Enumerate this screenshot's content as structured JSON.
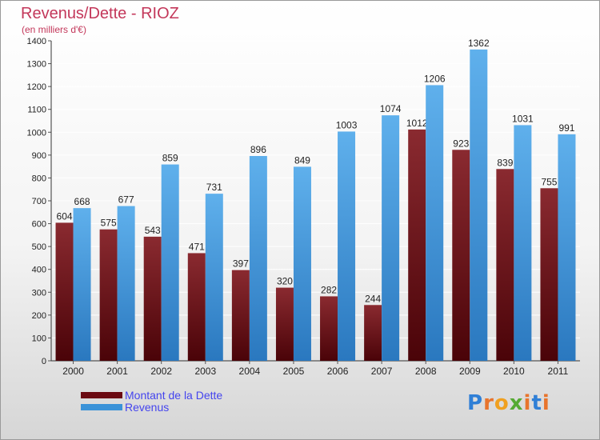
{
  "header": {
    "title": "Revenus/Dette - RIOZ",
    "subtitle": "(en milliers d'€)"
  },
  "legend": {
    "items": [
      {
        "label": "Montant de la Dette",
        "color": "#6b0a12"
      },
      {
        "label": "Revenus",
        "color": "#3a92d8"
      }
    ]
  },
  "logo": {
    "text": "Proxiti",
    "colors": [
      "#2f7fd6",
      "#e8742c",
      "#f0a020",
      "#55aa33",
      "#e8742c",
      "#2f7fd6",
      "#e8742c"
    ]
  },
  "colors": {
    "title": "#c3375a",
    "debt_bar": "#7a1c22",
    "revenue_bar": "#55a8e6",
    "grid": "#ffffff",
    "axis_text": "#222222"
  },
  "chart_data": {
    "type": "bar",
    "title": "Revenus/Dette - RIOZ",
    "subtitle": "(en milliers d'€)",
    "categories": [
      "2000",
      "2001",
      "2002",
      "2003",
      "2004",
      "2005",
      "2006",
      "2007",
      "2008",
      "2009",
      "2010",
      "2011"
    ],
    "series": [
      {
        "name": "Montant de la Dette",
        "values": [
          604,
          575,
          543,
          471,
          397,
          320,
          282,
          244,
          1012,
          923,
          839,
          755
        ]
      },
      {
        "name": "Revenus",
        "values": [
          668,
          677,
          859,
          731,
          896,
          849,
          1003,
          1074,
          1206,
          1362,
          1031,
          991
        ]
      }
    ],
    "ylim": [
      0,
      1400
    ],
    "yticks": [
      0,
      100,
      200,
      300,
      400,
      500,
      600,
      700,
      800,
      900,
      1000,
      1100,
      1200,
      1300,
      1400
    ],
    "grid": true,
    "legend_position": "bottom-left"
  }
}
